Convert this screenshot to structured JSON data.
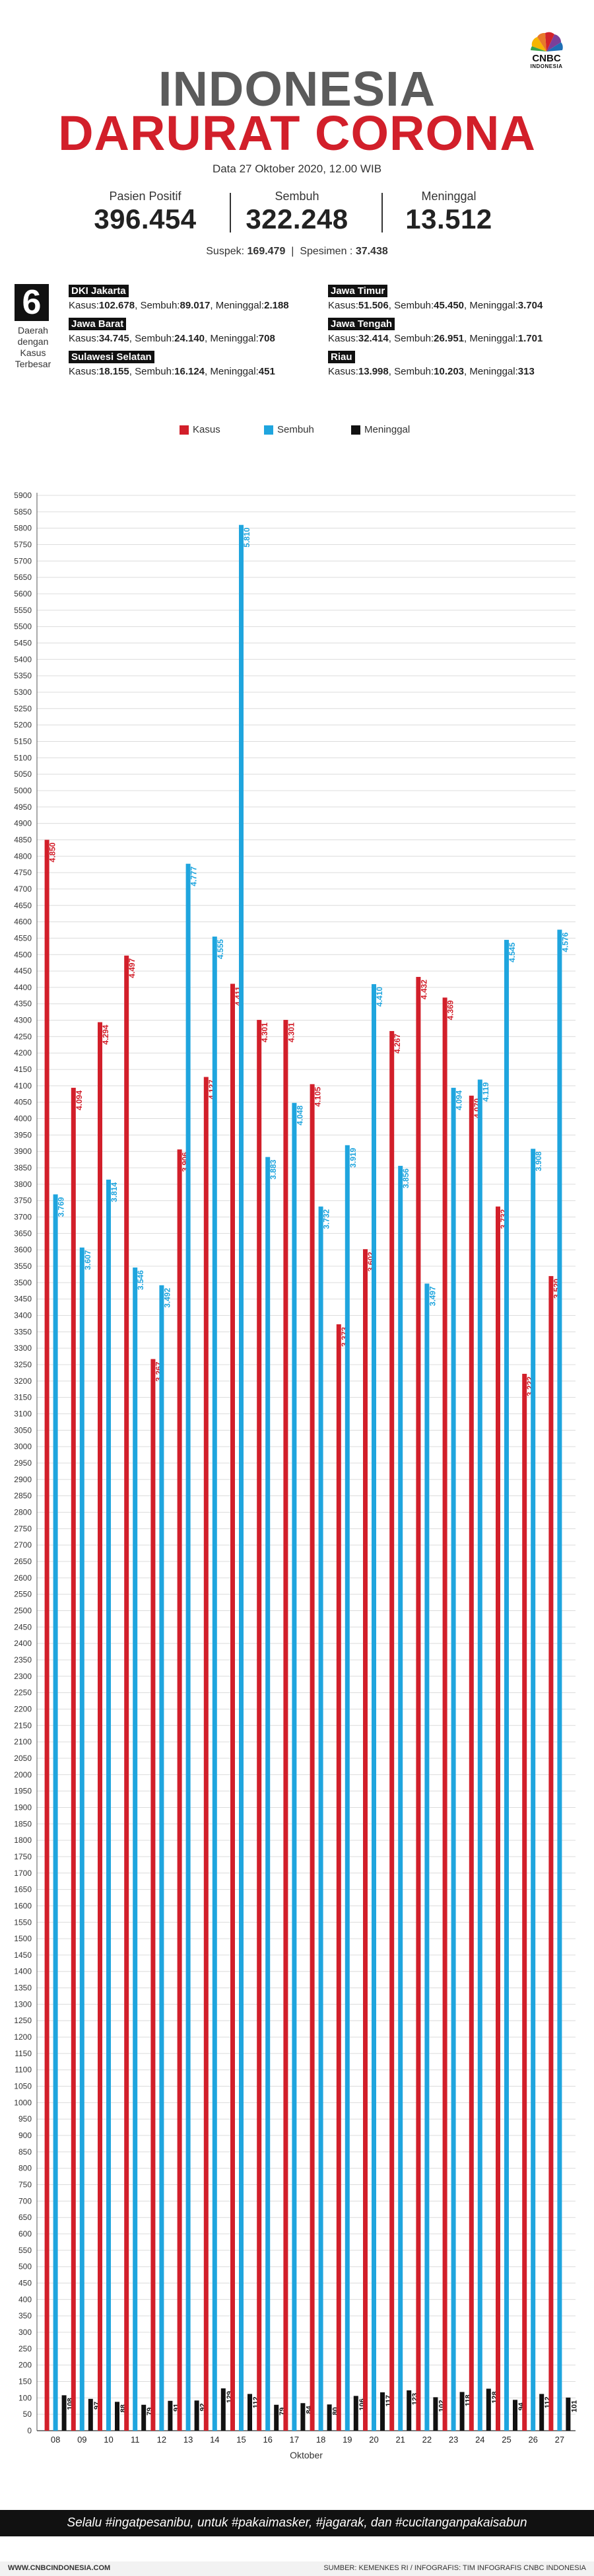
{
  "brand": {
    "line1": "CNBC",
    "line2": "INDONESIA"
  },
  "header": {
    "title_line1": "INDONESIA",
    "title_line2": "DARURAT CORONA",
    "date": "Data 27 Oktober 2020, 12.00 WIB"
  },
  "stats": [
    {
      "label": "Pasien Positif",
      "value": "396.454"
    },
    {
      "label": "Sembuh",
      "value": "322.248"
    },
    {
      "label": "Meninggal",
      "value": "13.512"
    }
  ],
  "tests": {
    "suspek_label": "Suspek:",
    "suspek": "169.479",
    "spesimen_label": "Spesimen :",
    "spesimen": "37.438"
  },
  "regions_header": {
    "number": "6",
    "caption": "Daerah dengan Kasus Terbesar"
  },
  "regions": [
    {
      "name": "DKI Jakarta",
      "kasus": "102.678",
      "sembuh": "89.017",
      "meninggal": "2.188"
    },
    {
      "name": "Jawa Barat",
      "kasus": "34.745",
      "sembuh": "24.140",
      "meninggal": "708"
    },
    {
      "name": "Sulawesi Selatan",
      "kasus": "18.155",
      "sembuh": "16.124",
      "meninggal": "451"
    },
    {
      "name": "Jawa Timur",
      "kasus": "51.506",
      "sembuh": "45.450",
      "meninggal": "3.704"
    },
    {
      "name": "Jawa Tengah",
      "kasus": "32.414",
      "sembuh": "26.951",
      "meninggal": "1.701"
    },
    {
      "name": "Riau",
      "kasus": "13.998",
      "sembuh": "10.203",
      "meninggal": "313"
    }
  ],
  "region_labels": {
    "kasus": "Kasus:",
    "sembuh": "Sembuh:",
    "meninggal": "Meninggal:"
  },
  "colors": {
    "kasus": "#d21f2a",
    "sembuh": "#1fa5de",
    "meninggal": "#111111",
    "title_gray": "#5b5b5b"
  },
  "chart_data": {
    "type": "bar",
    "xlabel": "Oktober",
    "ylabel": "",
    "ylim": [
      0,
      5900
    ],
    "ytick_step": 50,
    "grid": true,
    "legend_position": "top-center",
    "categories": [
      "08",
      "09",
      "10",
      "11",
      "12",
      "13",
      "14",
      "15",
      "16",
      "17",
      "18",
      "19",
      "20",
      "21",
      "22",
      "23",
      "24",
      "25",
      "26",
      "27"
    ],
    "series": [
      {
        "name": "Kasus",
        "color": "#d21f2a",
        "values": [
          4850,
          4094,
          4294,
          4497,
          3267,
          3906,
          4127,
          4411,
          4301,
          4301,
          4105,
          3373,
          3602,
          4267,
          4432,
          4369,
          4070,
          3732,
          3222,
          3520
        ],
        "labels": [
          "4.850",
          "4.094",
          "4.294",
          "4.497",
          "3.267",
          "3.906",
          "4.127",
          "4.411",
          "4.301",
          "4.301",
          "4.105",
          "3.373",
          "3.602",
          "4.267",
          "4.432",
          "4.369",
          "4.070",
          "3.732",
          "3.222",
          "3.520"
        ]
      },
      {
        "name": "Sembuh",
        "color": "#1fa5de",
        "values": [
          3769,
          3607,
          3814,
          3546,
          3492,
          4777,
          4555,
          5810,
          3883,
          4048,
          3732,
          3919,
          4410,
          3856,
          3497,
          4094,
          4119,
          4545,
          3908,
          4576
        ],
        "labels": [
          "3.769",
          "3.607",
          "3.814",
          "3.546",
          "3.492",
          "4.777",
          "4.555",
          "5.810",
          "3.883",
          "4.048",
          "3.732",
          "3.919",
          "4.410",
          "3.856",
          "3.497",
          "4.094",
          "4.119",
          "4.545",
          "3.908",
          "4.576"
        ]
      },
      {
        "name": "Meninggal",
        "color": "#111111",
        "values": [
          108,
          97,
          88,
          79,
          91,
          92,
          129,
          112,
          79,
          84,
          80,
          106,
          117,
          123,
          102,
          118,
          128,
          94,
          112,
          101
        ],
        "labels": [
          "108",
          "97",
          "88",
          "79",
          "91",
          "92",
          "129",
          "112",
          "79",
          "84",
          "80",
          "106",
          "117",
          "123",
          "102",
          "118",
          "128",
          "94",
          "112",
          "101"
        ]
      }
    ]
  },
  "slogan": "Selalu #ingatpesanibu, untuk #pakaimasker, #jagarak, dan #cucitanganpakaisabun",
  "footer": {
    "site": "WWW.CNBCINDONESIA.COM",
    "source": "SUMBER: KEMENKES RI / INFOGRAFIS: TIM INFOGRAFIS CNBC INDONESIA"
  }
}
